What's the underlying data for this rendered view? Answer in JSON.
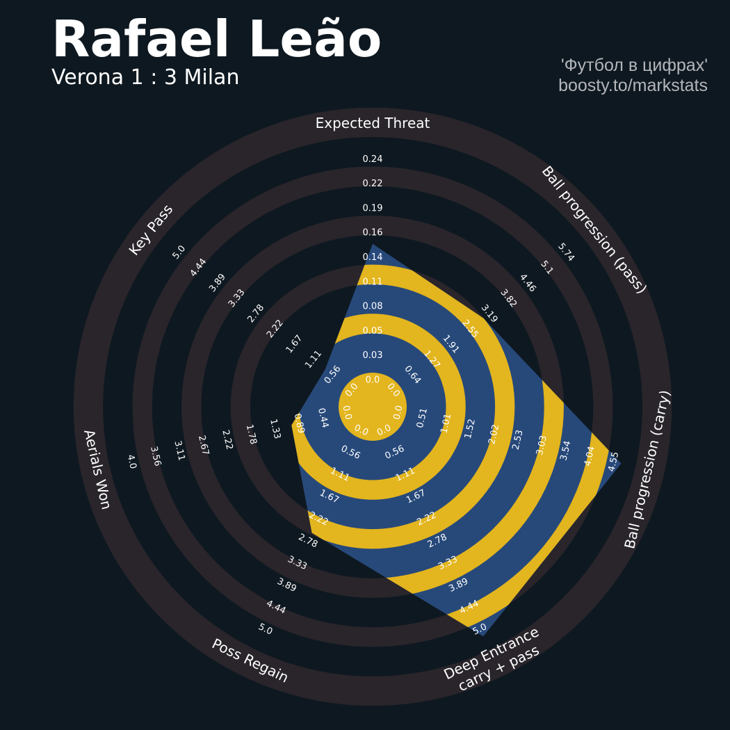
{
  "header": {
    "title": "Rafael Leão",
    "subtitle": "Verona 1 : 3 Milan",
    "credit_line1": "'Футбол в цифрах'",
    "credit_line2": "boosty.to/markstats"
  },
  "colors": {
    "background": "#0e1820",
    "ring_band": "#29252b",
    "player_fill": "#27497a",
    "player_band": "#e3b51e",
    "text": "#ffffff",
    "credit": "#b4b6ba"
  },
  "chart_data": {
    "type": "radar",
    "title": "Rafael Leão",
    "subtitle": "Verona 1 : 3 Milan",
    "num_rings": 10,
    "axes": [
      {
        "label": [
          "Expected Threat"
        ],
        "min": 0,
        "max": 0.24,
        "value": 0.14,
        "ticks": [
          "0.0",
          "0.03",
          "0.05",
          "0.08",
          "0.11",
          "0.14",
          "0.16",
          "0.19",
          "0.22",
          "0.24"
        ]
      },
      {
        "label": [
          "Ball progression (pass)"
        ],
        "min": 0,
        "max": 5.74,
        "value": 2.8,
        "ticks": [
          "0.0",
          "0.64",
          "1.27",
          "1.91",
          "2.55",
          "3.19",
          "3.82",
          "4.46",
          "5.1",
          "5.74"
        ]
      },
      {
        "label": [
          "Ball progression (carry)"
        ],
        "min": 0,
        "max": 4.55,
        "value": 4.55,
        "ticks": [
          "0.0",
          "0.51",
          "1.01",
          "1.52",
          "2.02",
          "2.53",
          "3.03",
          "3.54",
          "4.04",
          "4.55"
        ]
      },
      {
        "label": [
          "Deep Entrance",
          "carry + pass"
        ],
        "min": 0,
        "max": 5.0,
        "value": 5.0,
        "ticks": [
          "0.0",
          "0.56",
          "1.11",
          "1.67",
          "2.22",
          "2.78",
          "3.33",
          "3.89",
          "4.44",
          "5.0"
        ]
      },
      {
        "label": [
          "Poss Regain"
        ],
        "min": 0,
        "max": 5.0,
        "value": 2.4,
        "ticks": [
          "0.0",
          "0.56",
          "1.11",
          "1.67",
          "2.22",
          "2.78",
          "3.33",
          "3.89",
          "4.44",
          "5.0"
        ]
      },
      {
        "label": [
          "Aerials Won"
        ],
        "min": 0,
        "max": 4.0,
        "value": 0.89,
        "ticks": [
          "0.0",
          "0.44",
          "0.89",
          "1.33",
          "1.78",
          "2.22",
          "2.67",
          "3.11",
          "3.56",
          "4.0"
        ]
      },
      {
        "label": [
          "Key Pass"
        ],
        "min": 0,
        "max": 5.0,
        "value": 0.6,
        "ticks": [
          "0.0",
          "0.56",
          "1.11",
          "1.67",
          "2.22",
          "2.78",
          "3.33",
          "3.89",
          "4.44",
          "5.0"
        ]
      }
    ]
  }
}
